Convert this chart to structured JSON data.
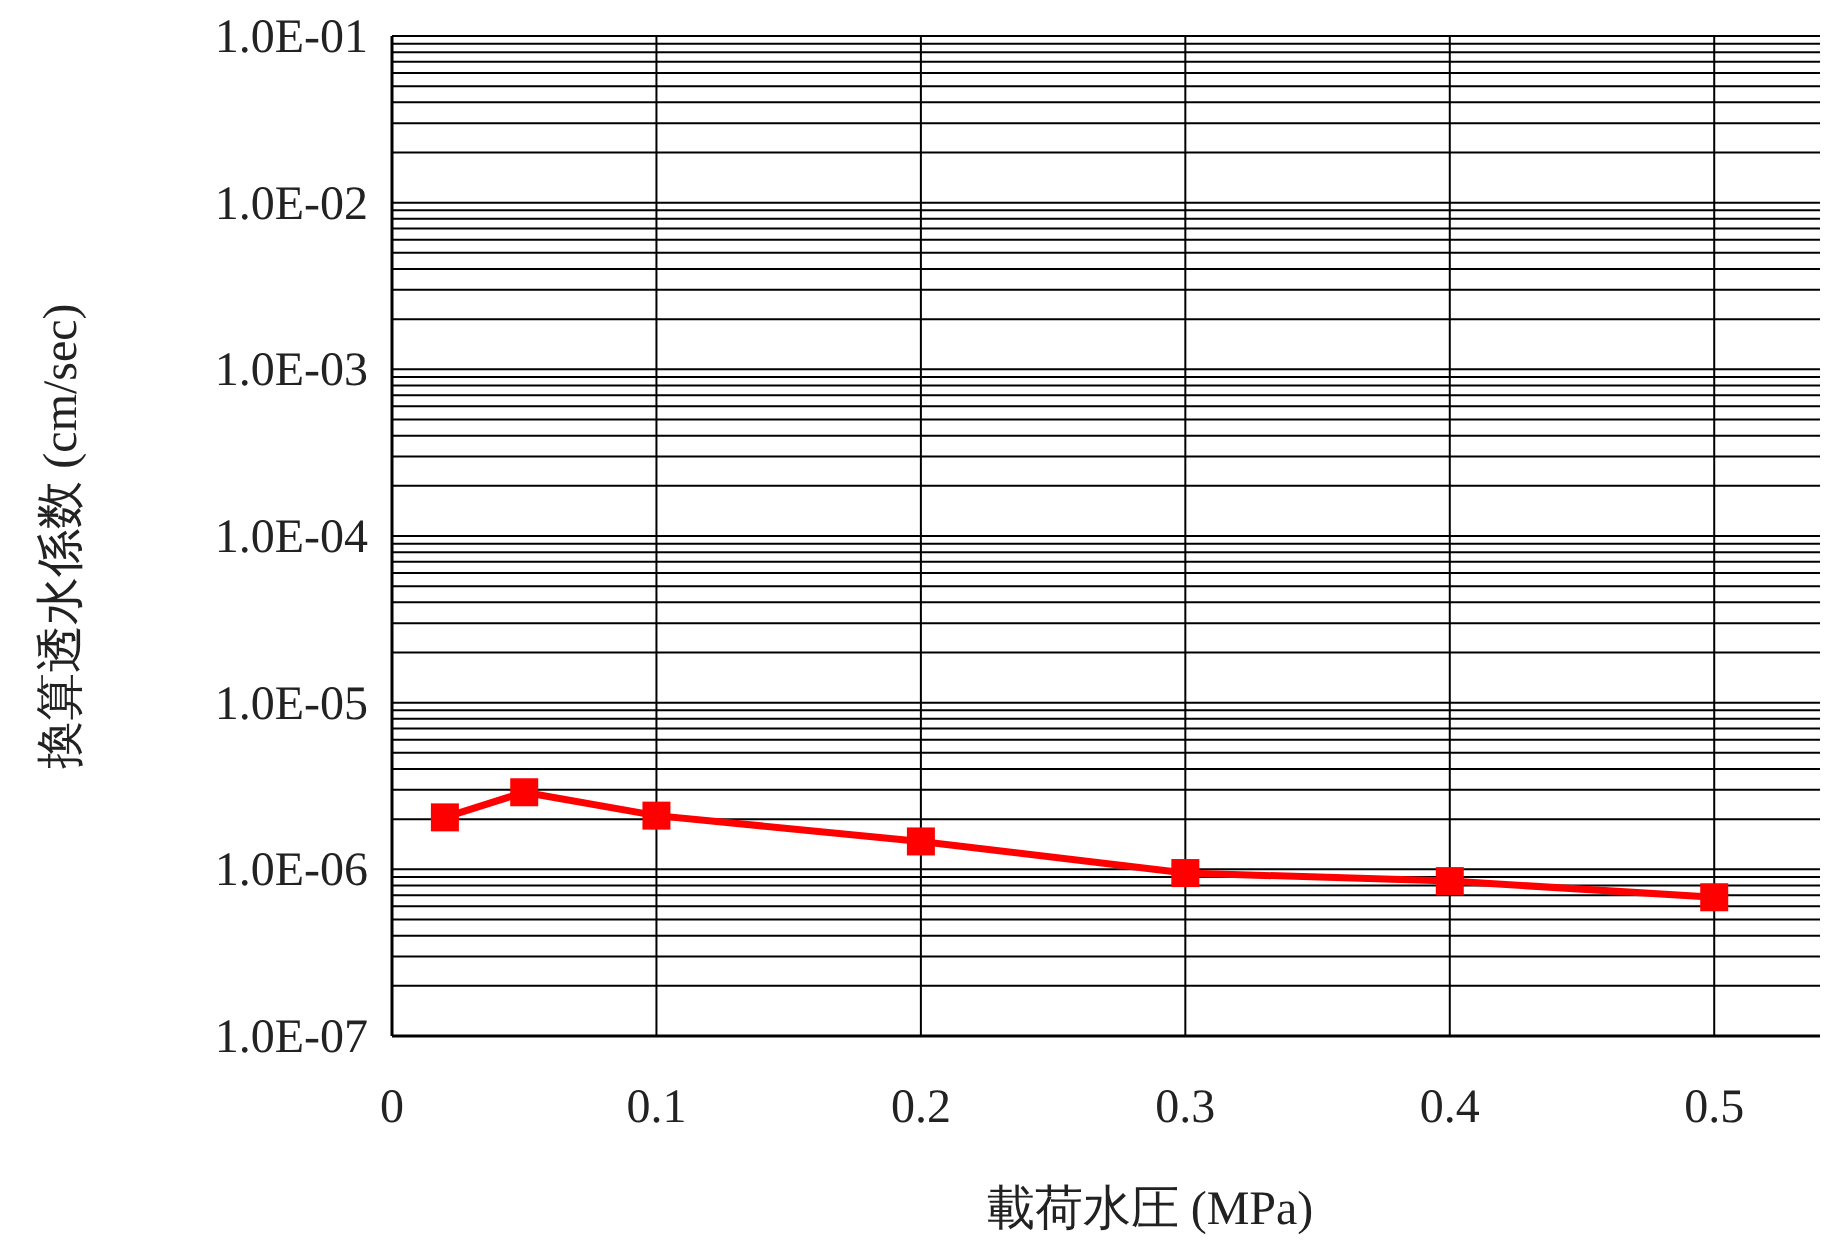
{
  "chart_data": {
    "type": "line",
    "xlabel": "載荷水圧 (MPa)",
    "ylabel": "換算透水係数 (cm/sec)",
    "x": [
      0.02,
      0.05,
      0.1,
      0.2,
      0.3,
      0.4,
      0.5
    ],
    "series": [
      {
        "color": "#ff0000",
        "values": [
          2.05e-06,
          2.9e-06,
          2.1e-06,
          1.47e-06,
          9.5e-07,
          8.5e-07,
          6.8e-07
        ]
      }
    ],
    "xlim": [
      0,
      0.54
    ],
    "xticks": [
      0,
      0.1,
      0.2,
      0.3,
      0.4,
      0.5
    ],
    "ylim": [
      1e-07,
      0.1
    ],
    "yticks": [
      {
        "value": 1e-07,
        "label": "1.0E-07"
      },
      {
        "value": 1e-06,
        "label": "1.0E-06"
      },
      {
        "value": 1e-05,
        "label": "1.0E-05"
      },
      {
        "value": 0.0001,
        "label": "1.0E-04"
      },
      {
        "value": 0.001,
        "label": "1.0E-03"
      },
      {
        "value": 0.01,
        "label": "1.0E-02"
      },
      {
        "value": 0.1,
        "label": "1.0E-01"
      }
    ],
    "log": "y",
    "grid": true,
    "marker": "square",
    "line_style": "solid"
  }
}
